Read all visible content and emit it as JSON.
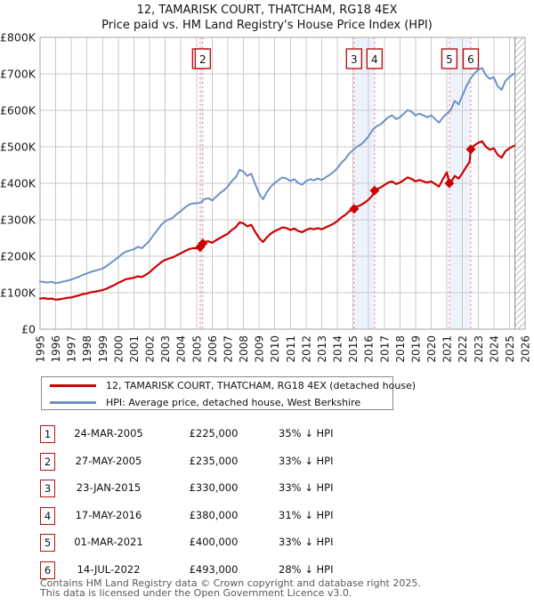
{
  "title": {
    "line1": "12, TAMARISK COURT, THATCHAM, RG18 4EX",
    "line2": "Price paid vs. HM Land Registry's House Price Index (HPI)"
  },
  "legend": {
    "series1": "12, TAMARISK COURT, THATCHAM, RG18 4EX (detached house)",
    "series2": "HPI: Average price, detached house, West Berkshire"
  },
  "sales": [
    {
      "label": "1",
      "date": "24-MAR-2005",
      "price": "£225,000",
      "pct": "35% ↓ HPI",
      "year": 2005.23,
      "price_k": 225
    },
    {
      "label": "2",
      "date": "27-MAY-2005",
      "price": "£235,000",
      "pct": "33% ↓ HPI",
      "year": 2005.4,
      "price_k": 235
    },
    {
      "label": "3",
      "date": "23-JAN-2015",
      "price": "£330,000",
      "pct": "33% ↓ HPI",
      "year": 2015.07,
      "price_k": 330
    },
    {
      "label": "4",
      "date": "17-MAY-2016",
      "price": "£380,000",
      "pct": "31% ↓ HPI",
      "year": 2016.38,
      "price_k": 380
    },
    {
      "label": "5",
      "date": "01-MAR-2021",
      "price": "£400,000",
      "pct": "33% ↓ HPI",
      "year": 2021.16,
      "price_k": 400
    },
    {
      "label": "6",
      "date": "14-JUL-2022",
      "price": "£493,000",
      "pct": "28% ↓ HPI",
      "year": 2022.53,
      "price_k": 493
    }
  ],
  "footer": {
    "line1": "Contains HM Land Registry data © Crown copyright and database right 2025.",
    "line2": "This data is licensed under the Open Government Licence v3.0."
  },
  "colors": {
    "price": "#cc0000",
    "hpi": "#6b92c7",
    "sale_line": "#ee8282",
    "band": "#dbe6f8",
    "grid": "#c9c9c9",
    "border": "#a6a6a6",
    "box_border": "#bb1111",
    "hatch": "#b8b8b8"
  },
  "chart_data": {
    "type": "line",
    "title": "12, TAMARISK COURT, THATCHAM, RG18 4EX — Price paid vs. HPI",
    "units": "GBP thousands",
    "xlim": [
      1995,
      2026
    ],
    "ylim_k": [
      0,
      800
    ],
    "x_tick_years": [
      1995,
      1996,
      1997,
      1998,
      1999,
      2000,
      2001,
      2002,
      2003,
      2004,
      2005,
      2006,
      2007,
      2008,
      2009,
      2010,
      2011,
      2012,
      2013,
      2014,
      2015,
      2016,
      2017,
      2018,
      2019,
      2020,
      2021,
      2022,
      2023,
      2024,
      2025,
      2026
    ],
    "y_tick_labels": [
      "£0",
      "£100K",
      "£200K",
      "£300K",
      "£400K",
      "£500K",
      "£600K",
      "£700K",
      "£800K"
    ],
    "grid": true,
    "legend_position": "below",
    "shaded_bands_years": [
      [
        2005.23,
        2005.4
      ],
      [
        2015.07,
        2016.38
      ],
      [
        2021.16,
        2022.53
      ]
    ],
    "future_hatch_start_year": 2025.35,
    "series": [
      {
        "name": "HPI: Average price, detached house, West Berkshire",
        "color_key": "hpi",
        "points": [
          [
            1995,
            131
          ],
          [
            1995.25,
            129
          ],
          [
            1995.5,
            128
          ],
          [
            1995.75,
            130
          ],
          [
            1996,
            126
          ],
          [
            1996.25,
            128
          ],
          [
            1996.5,
            131
          ],
          [
            1996.75,
            133
          ],
          [
            1997,
            136
          ],
          [
            1997.25,
            140
          ],
          [
            1997.5,
            144
          ],
          [
            1997.75,
            149
          ],
          [
            1998,
            153
          ],
          [
            1998.25,
            157
          ],
          [
            1998.5,
            160
          ],
          [
            1998.75,
            163
          ],
          [
            1999,
            166
          ],
          [
            1999.25,
            173
          ],
          [
            1999.5,
            181
          ],
          [
            1999.75,
            189
          ],
          [
            2000,
            197
          ],
          [
            2000.25,
            206
          ],
          [
            2000.5,
            213
          ],
          [
            2000.75,
            216
          ],
          [
            2001,
            219
          ],
          [
            2001.25,
            226
          ],
          [
            2001.5,
            222
          ],
          [
            2001.75,
            232
          ],
          [
            2002,
            243
          ],
          [
            2002.25,
            258
          ],
          [
            2002.5,
            272
          ],
          [
            2002.75,
            286
          ],
          [
            2003,
            296
          ],
          [
            2003.25,
            301
          ],
          [
            2003.5,
            306
          ],
          [
            2003.75,
            316
          ],
          [
            2004,
            324
          ],
          [
            2004.25,
            333
          ],
          [
            2004.5,
            341
          ],
          [
            2004.75,
            345
          ],
          [
            2005,
            345
          ],
          [
            2005.25,
            347
          ],
          [
            2005.5,
            356
          ],
          [
            2005.75,
            359
          ],
          [
            2006,
            353
          ],
          [
            2006.25,
            363
          ],
          [
            2006.5,
            373
          ],
          [
            2006.75,
            381
          ],
          [
            2007,
            391
          ],
          [
            2007.25,
            406
          ],
          [
            2007.5,
            416
          ],
          [
            2007.75,
            437
          ],
          [
            2008,
            432
          ],
          [
            2008.25,
            420
          ],
          [
            2008.5,
            426
          ],
          [
            2008.75,
            398
          ],
          [
            2009,
            372
          ],
          [
            2009.25,
            356
          ],
          [
            2009.5,
            376
          ],
          [
            2009.75,
            391
          ],
          [
            2010,
            401
          ],
          [
            2010.25,
            409
          ],
          [
            2010.5,
            416
          ],
          [
            2010.75,
            413
          ],
          [
            2011,
            406
          ],
          [
            2011.25,
            411
          ],
          [
            2011.5,
            401
          ],
          [
            2011.75,
            396
          ],
          [
            2012,
            406
          ],
          [
            2012.25,
            411
          ],
          [
            2012.5,
            408
          ],
          [
            2012.75,
            413
          ],
          [
            2013,
            409
          ],
          [
            2013.25,
            416
          ],
          [
            2013.5,
            423
          ],
          [
            2013.75,
            431
          ],
          [
            2014,
            441
          ],
          [
            2014.25,
            456
          ],
          [
            2014.5,
            466
          ],
          [
            2014.75,
            481
          ],
          [
            2015,
            491
          ],
          [
            2015.25,
            500
          ],
          [
            2015.5,
            506
          ],
          [
            2015.75,
            516
          ],
          [
            2016,
            529
          ],
          [
            2016.25,
            546
          ],
          [
            2016.5,
            556
          ],
          [
            2016.75,
            561
          ],
          [
            2017,
            571
          ],
          [
            2017.25,
            581
          ],
          [
            2017.5,
            586
          ],
          [
            2017.75,
            576
          ],
          [
            2018,
            581
          ],
          [
            2018.25,
            591
          ],
          [
            2018.5,
            601
          ],
          [
            2018.75,
            596
          ],
          [
            2019,
            586
          ],
          [
            2019.25,
            591
          ],
          [
            2019.5,
            586
          ],
          [
            2019.75,
            581
          ],
          [
            2020,
            586
          ],
          [
            2020.25,
            576
          ],
          [
            2020.5,
            566
          ],
          [
            2020.75,
            581
          ],
          [
            2021,
            591
          ],
          [
            2021.25,
            601
          ],
          [
            2021.5,
            626
          ],
          [
            2021.75,
            616
          ],
          [
            2022,
            641
          ],
          [
            2022.25,
            666
          ],
          [
            2022.5,
            686
          ],
          [
            2022.75,
            701
          ],
          [
            2023,
            711
          ],
          [
            2023.25,
            716
          ],
          [
            2023.5,
            696
          ],
          [
            2023.75,
            686
          ],
          [
            2024,
            691
          ],
          [
            2024.25,
            666
          ],
          [
            2024.5,
            656
          ],
          [
            2024.75,
            681
          ],
          [
            2025,
            691
          ],
          [
            2025.3,
            701
          ]
        ]
      },
      {
        "name": "12, TAMARISK COURT, THATCHAM, RG18 4EX (detached house)",
        "color_key": "price",
        "points": [
          [
            1995,
            84
          ],
          [
            1995.25,
            85
          ],
          [
            1995.5,
            83
          ],
          [
            1995.75,
            84
          ],
          [
            1996,
            81
          ],
          [
            1996.25,
            82
          ],
          [
            1996.5,
            84
          ],
          [
            1996.75,
            86
          ],
          [
            1997,
            87
          ],
          [
            1997.25,
            90
          ],
          [
            1997.5,
            93
          ],
          [
            1997.75,
            96
          ],
          [
            1998,
            98
          ],
          [
            1998.25,
            101
          ],
          [
            1998.5,
            103
          ],
          [
            1998.75,
            105
          ],
          [
            1999,
            107
          ],
          [
            1999.25,
            111
          ],
          [
            1999.5,
            116
          ],
          [
            1999.75,
            121
          ],
          [
            2000,
            127
          ],
          [
            2000.25,
            132
          ],
          [
            2000.5,
            137
          ],
          [
            2000.75,
            139
          ],
          [
            2001,
            141
          ],
          [
            2001.25,
            145
          ],
          [
            2001.5,
            143
          ],
          [
            2001.75,
            149
          ],
          [
            2002,
            156
          ],
          [
            2002.25,
            166
          ],
          [
            2002.5,
            175
          ],
          [
            2002.75,
            184
          ],
          [
            2003,
            190
          ],
          [
            2003.25,
            194
          ],
          [
            2003.5,
            197
          ],
          [
            2003.75,
            203
          ],
          [
            2004,
            208
          ],
          [
            2004.25,
            214
          ],
          [
            2004.5,
            219
          ],
          [
            2004.75,
            222
          ],
          [
            2005,
            222
          ],
          [
            2005.23,
            225
          ],
          [
            2005.4,
            235
          ],
          [
            2005.5,
            239
          ],
          [
            2005.75,
            241
          ],
          [
            2006,
            237
          ],
          [
            2006.25,
            244
          ],
          [
            2006.5,
            250
          ],
          [
            2006.75,
            256
          ],
          [
            2007,
            262
          ],
          [
            2007.25,
            272
          ],
          [
            2007.5,
            279
          ],
          [
            2007.75,
            293
          ],
          [
            2008,
            290
          ],
          [
            2008.25,
            282
          ],
          [
            2008.5,
            286
          ],
          [
            2008.75,
            267
          ],
          [
            2009,
            250
          ],
          [
            2009.25,
            239
          ],
          [
            2009.5,
            252
          ],
          [
            2009.75,
            262
          ],
          [
            2010,
            269
          ],
          [
            2010.25,
            274
          ],
          [
            2010.5,
            279
          ],
          [
            2010.75,
            277
          ],
          [
            2011,
            272
          ],
          [
            2011.25,
            276
          ],
          [
            2011.5,
            269
          ],
          [
            2011.75,
            266
          ],
          [
            2012,
            272
          ],
          [
            2012.25,
            276
          ],
          [
            2012.5,
            274
          ],
          [
            2012.75,
            277
          ],
          [
            2013,
            274
          ],
          [
            2013.25,
            279
          ],
          [
            2013.5,
            284
          ],
          [
            2013.75,
            289
          ],
          [
            2014,
            296
          ],
          [
            2014.25,
            306
          ],
          [
            2014.5,
            313
          ],
          [
            2014.75,
            323
          ],
          [
            2015.07,
            330
          ],
          [
            2015.25,
            336
          ],
          [
            2015.5,
            340
          ],
          [
            2015.75,
            347
          ],
          [
            2016,
            355
          ],
          [
            2016.25,
            367
          ],
          [
            2016.38,
            380
          ],
          [
            2016.5,
            384
          ],
          [
            2016.75,
            388
          ],
          [
            2017,
            395
          ],
          [
            2017.25,
            402
          ],
          [
            2017.5,
            405
          ],
          [
            2017.75,
            398
          ],
          [
            2018,
            402
          ],
          [
            2018.25,
            409
          ],
          [
            2018.5,
            416
          ],
          [
            2018.75,
            412
          ],
          [
            2019,
            405
          ],
          [
            2019.25,
            409
          ],
          [
            2019.5,
            405
          ],
          [
            2019.75,
            402
          ],
          [
            2020,
            405
          ],
          [
            2020.25,
            398
          ],
          [
            2020.5,
            391
          ],
          [
            2020.75,
            412
          ],
          [
            2021,
            430
          ],
          [
            2021.16,
            400
          ],
          [
            2021.3,
            406
          ],
          [
            2021.5,
            420
          ],
          [
            2021.75,
            413
          ],
          [
            2022,
            428
          ],
          [
            2022.25,
            446
          ],
          [
            2022.45,
            458
          ],
          [
            2022.53,
            493
          ],
          [
            2022.75,
            504
          ],
          [
            2023,
            511
          ],
          [
            2023.25,
            515
          ],
          [
            2023.5,
            500
          ],
          [
            2023.75,
            492
          ],
          [
            2024,
            496
          ],
          [
            2024.25,
            478
          ],
          [
            2024.5,
            470
          ],
          [
            2024.75,
            488
          ],
          [
            2025,
            496
          ],
          [
            2025.3,
            503
          ]
        ]
      }
    ]
  }
}
